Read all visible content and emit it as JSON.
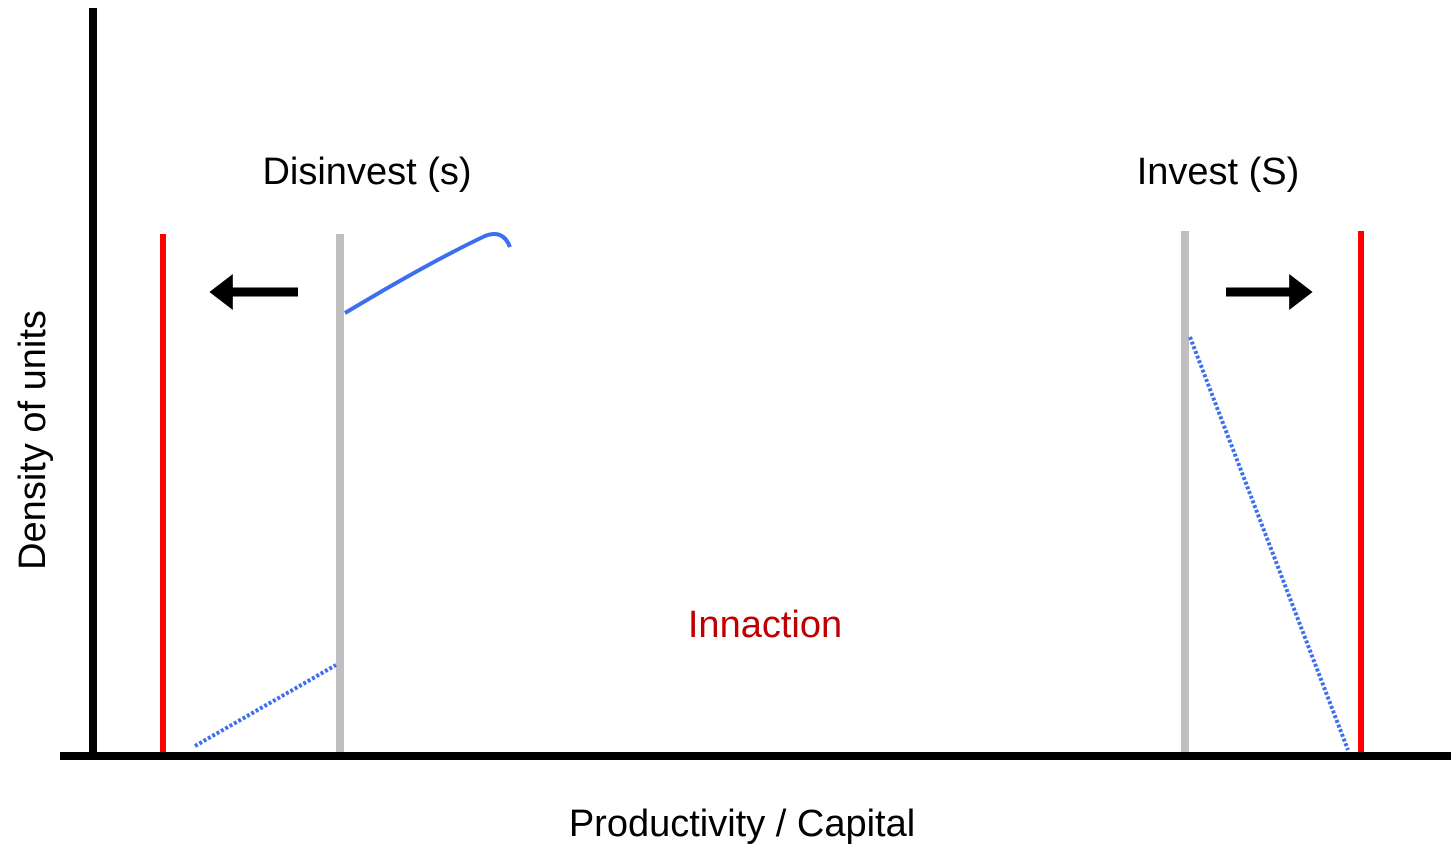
{
  "labels": {
    "disinvest": "Disinvest (s)",
    "invest": "Invest (S)",
    "inaction": "Innaction"
  },
  "axes": {
    "x_label": "Productivity / Capital",
    "y_label": "Density of units"
  }
}
